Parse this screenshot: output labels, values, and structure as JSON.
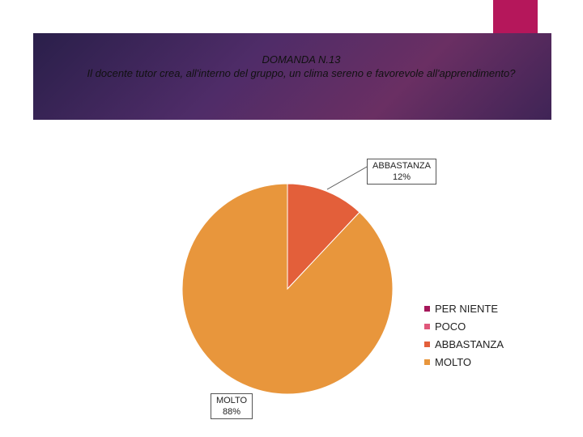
{
  "title": {
    "line1": "DOMANDA N.13",
    "line2": "Il docente tutor crea, all'interno del gruppo, un clima sereno e favorevole all'apprendimento?"
  },
  "colors": {
    "accent_bar": "#b5175b",
    "banner": "#4f2c68"
  },
  "chart_data": {
    "type": "pie",
    "title": "DOMANDA N.13 Il docente tutor crea, all'interno del gruppo, un clima sereno e favorevole all'apprendimento?",
    "slices": [
      {
        "label": "PER NIENTE",
        "value": 0,
        "color": "#a5175a"
      },
      {
        "label": "POCO",
        "value": 0,
        "color": "#e0577a"
      },
      {
        "label": "ABBASTANZA",
        "value": 12,
        "color": "#e35f3a"
      },
      {
        "label": "MOLTO",
        "value": 88,
        "color": "#e8963c"
      }
    ],
    "data_labels": [
      {
        "category": "ABBASTANZA",
        "percent": "12%"
      },
      {
        "category": "MOLTO",
        "percent": "88%"
      }
    ],
    "legend": {
      "placement": "right",
      "entries": [
        "PER NIENTE",
        "POCO",
        "ABBASTANZA",
        "MOLTO"
      ]
    }
  }
}
